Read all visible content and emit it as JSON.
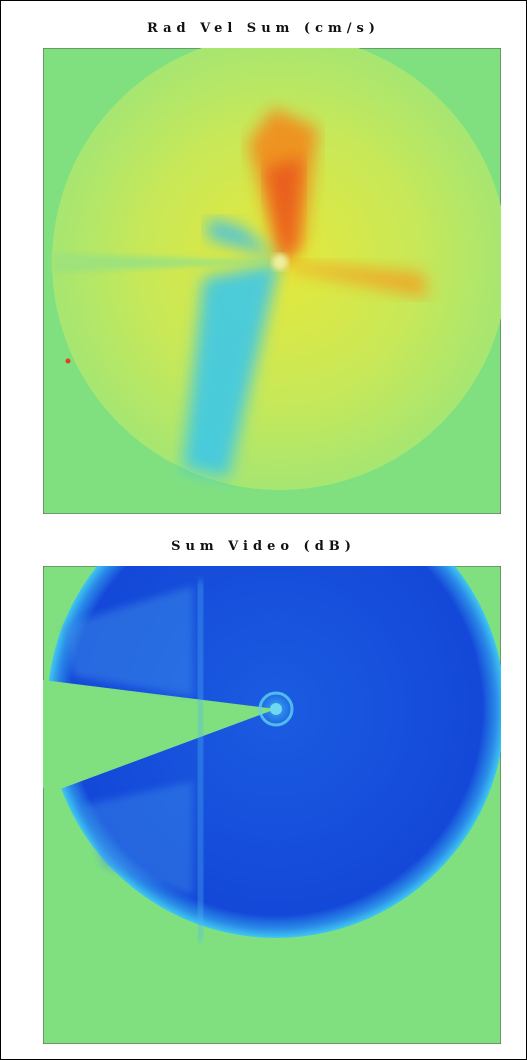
{
  "panels": [
    {
      "title": "Rad Vel Sum (cm/s)"
    },
    {
      "title": "Sum Video (dB)"
    }
  ]
}
